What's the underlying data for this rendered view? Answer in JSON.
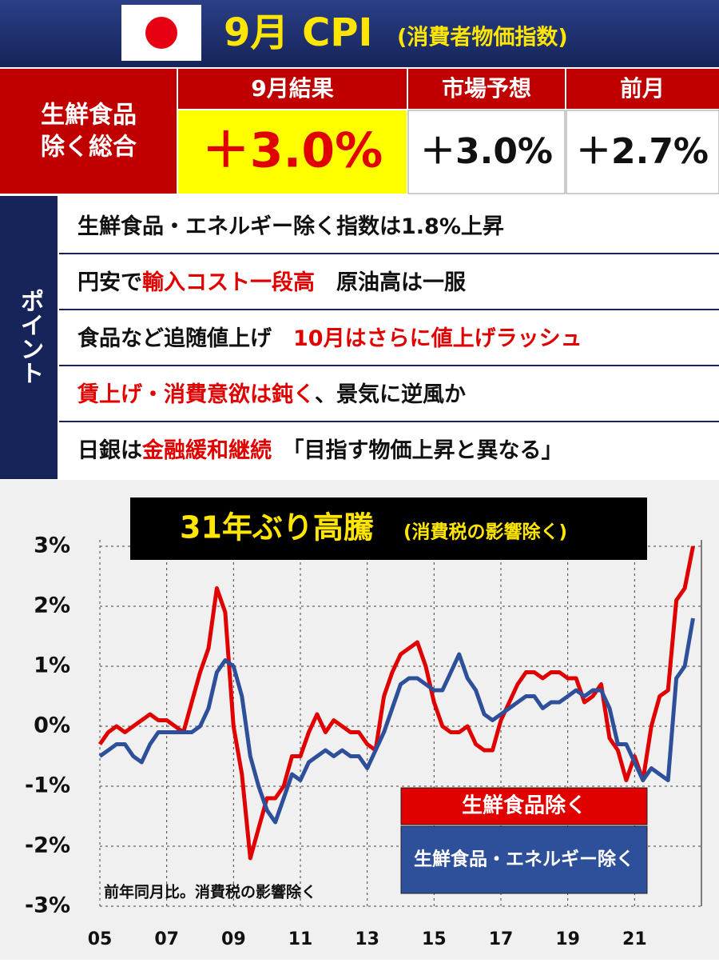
{
  "header": {
    "title": "9月 CPI",
    "subtitle": "(消費者物価指数)"
  },
  "table": {
    "row_label": [
      "生鮮食品",
      "除く総合"
    ],
    "columns": [
      "9月結果",
      "市場予想",
      "前月"
    ],
    "values": [
      "＋3.0%",
      "＋3.0%",
      "＋2.7%"
    ]
  },
  "points": {
    "label": "ポイント",
    "rows": [
      [
        {
          "text": "生鮮食品・エネルギー除く指数は1.8%上昇",
          "color": "#111111"
        }
      ],
      [
        {
          "text": "円安で",
          "color": "#111111"
        },
        {
          "text": "輸入コスト一段高",
          "color": "#e00000"
        },
        {
          "text": "　原油高は一服",
          "color": "#111111"
        }
      ],
      [
        {
          "text": "食品など追随値上げ　",
          "color": "#111111"
        },
        {
          "text": "10月はさらに値上げラッシュ",
          "color": "#e00000"
        }
      ],
      [
        {
          "text": "賃上げ・消費意欲は鈍く",
          "color": "#e00000"
        },
        {
          "text": "、景気に逆風か",
          "color": "#111111"
        }
      ],
      [
        {
          "text": "日銀は",
          "color": "#111111"
        },
        {
          "text": "金融緩和継続",
          "color": "#e00000"
        },
        {
          "text": "　「目指す物価上昇と異なる」",
          "color": "#111111"
        }
      ]
    ]
  },
  "chart_data": {
    "type": "line",
    "title": "31年ぶり高騰",
    "subtitle": "(消費税の影響除く)",
    "note": "前年同月比。消費税の影響除く",
    "x": [
      2005,
      2005.25,
      2005.5,
      2005.75,
      2006,
      2006.25,
      2006.5,
      2006.75,
      2007,
      2007.25,
      2007.5,
      2007.75,
      2008,
      2008.25,
      2008.5,
      2008.75,
      2009,
      2009.25,
      2009.5,
      2009.75,
      2010,
      2010.25,
      2010.5,
      2010.75,
      2011,
      2011.25,
      2011.5,
      2011.75,
      2012,
      2012.25,
      2012.5,
      2012.75,
      2013,
      2013.25,
      2013.5,
      2013.75,
      2014,
      2014.25,
      2014.5,
      2014.75,
      2015,
      2015.25,
      2015.5,
      2015.75,
      2016,
      2016.25,
      2016.5,
      2016.75,
      2017,
      2017.25,
      2017.5,
      2017.75,
      2018,
      2018.25,
      2018.5,
      2018.75,
      2019,
      2019.25,
      2019.5,
      2019.75,
      2020,
      2020.25,
      2020.5,
      2020.75,
      2021,
      2021.25,
      2021.5,
      2021.75,
      2022,
      2022.25,
      2022.5,
      2022.75
    ],
    "series": [
      {
        "name": "生鮮食品除く",
        "color": "#e00000",
        "values": [
          -0.3,
          -0.1,
          0.0,
          -0.1,
          0.0,
          0.1,
          0.2,
          0.1,
          0.1,
          0.0,
          -0.1,
          0.4,
          0.9,
          1.3,
          2.3,
          1.9,
          0.0,
          -0.8,
          -2.2,
          -1.7,
          -1.2,
          -1.2,
          -1.0,
          -0.5,
          -0.5,
          -0.1,
          0.2,
          -0.1,
          0.1,
          0.0,
          -0.1,
          -0.1,
          -0.3,
          -0.4,
          0.5,
          0.9,
          1.2,
          1.3,
          1.4,
          1.0,
          0.4,
          0.0,
          -0.1,
          -0.1,
          0.0,
          -0.3,
          -0.4,
          -0.4,
          0.1,
          0.4,
          0.7,
          0.9,
          0.9,
          0.8,
          0.9,
          0.9,
          0.8,
          0.8,
          0.4,
          0.5,
          0.7,
          -0.2,
          -0.4,
          -0.9,
          -0.5,
          -0.9,
          0.0,
          0.5,
          0.6,
          2.1,
          2.3,
          3.0
        ]
      },
      {
        "name": "生鮮食品・エネルギー除く",
        "color": "#2e4f9a",
        "values": [
          -0.5,
          -0.4,
          -0.3,
          -0.3,
          -0.5,
          -0.6,
          -0.3,
          -0.1,
          -0.1,
          -0.1,
          -0.1,
          -0.1,
          0.0,
          0.3,
          0.9,
          1.1,
          1.0,
          0.5,
          -0.5,
          -1.0,
          -1.4,
          -1.6,
          -1.2,
          -0.8,
          -0.9,
          -0.6,
          -0.5,
          -0.4,
          -0.5,
          -0.4,
          -0.5,
          -0.5,
          -0.7,
          -0.4,
          -0.1,
          0.3,
          0.7,
          0.8,
          0.8,
          0.7,
          0.6,
          0.6,
          0.9,
          1.2,
          0.8,
          0.6,
          0.2,
          0.1,
          0.2,
          0.3,
          0.4,
          0.5,
          0.5,
          0.3,
          0.4,
          0.4,
          0.5,
          0.6,
          0.5,
          0.6,
          0.6,
          0.3,
          -0.3,
          -0.3,
          -0.6,
          -0.9,
          -0.7,
          -0.8,
          -0.9,
          0.8,
          1.0,
          1.8
        ]
      }
    ],
    "xlim": [
      2005,
      2023
    ],
    "ylim": [
      -3,
      3
    ],
    "xticks": [
      {
        "value": 2005,
        "label": "05"
      },
      {
        "value": 2007,
        "label": "07"
      },
      {
        "value": 2009,
        "label": "09"
      },
      {
        "value": 2011,
        "label": "11"
      },
      {
        "value": 2013,
        "label": "13"
      },
      {
        "value": 2015,
        "label": "15"
      },
      {
        "value": 2017,
        "label": "17"
      },
      {
        "value": 2019,
        "label": "19"
      },
      {
        "value": 2021,
        "label": "21"
      }
    ],
    "yticks": [
      {
        "value": -3,
        "label": "-3%"
      },
      {
        "value": -2,
        "label": "-2%"
      },
      {
        "value": -1,
        "label": "-1%"
      },
      {
        "value": 0,
        "label": "0%"
      },
      {
        "value": 1,
        "label": "1%"
      },
      {
        "value": 2,
        "label": "2%"
      },
      {
        "value": 3,
        "label": "3%"
      }
    ],
    "grid": true
  }
}
